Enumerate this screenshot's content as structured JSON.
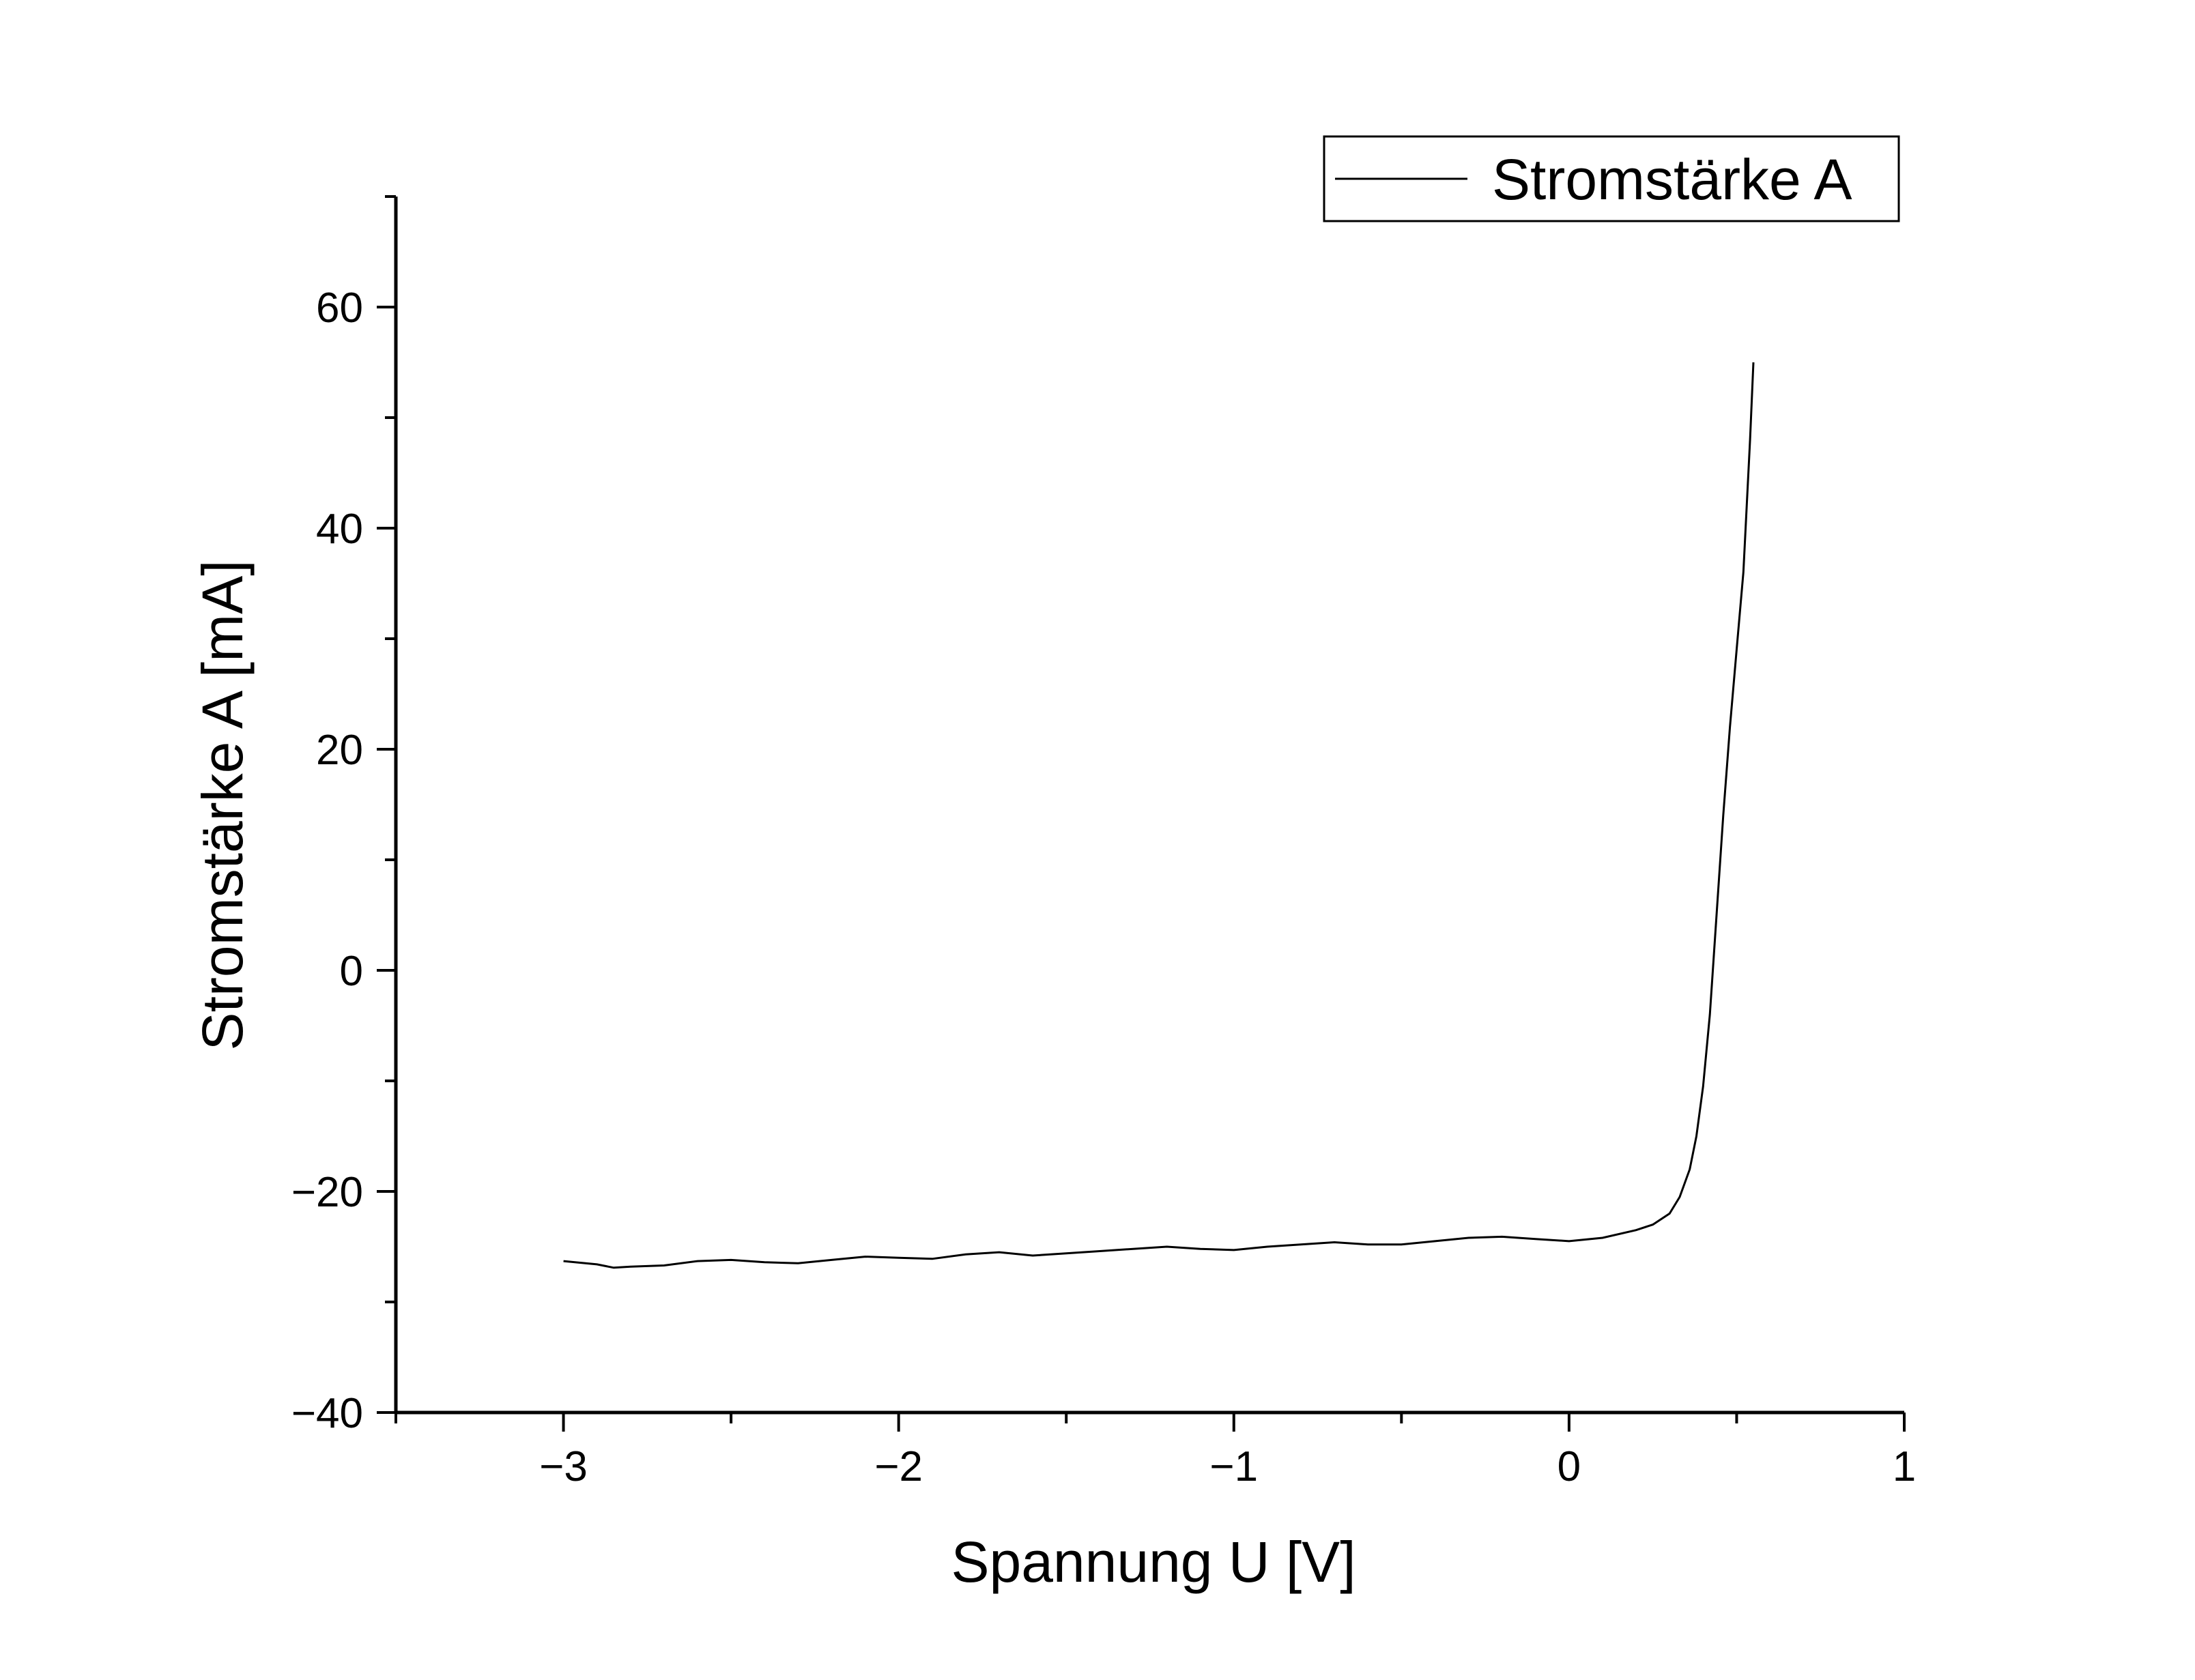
{
  "chart_data": {
    "type": "line",
    "title": "",
    "xlabel": "Spannung U [V]",
    "ylabel": "Stromstärke A [mA]",
    "xlim": [
      -3.5,
      1
    ],
    "ylim": [
      -40,
      70
    ],
    "xticks": [
      -3,
      -2,
      -1,
      0,
      1
    ],
    "xtick_labels": [
      "−3",
      "−2",
      "−1",
      "0",
      "1"
    ],
    "yticks": [
      -40,
      -20,
      0,
      20,
      40,
      60
    ],
    "ytick_labels": [
      "−40",
      "−20",
      "0",
      "20",
      "40",
      "60"
    ],
    "grid": false,
    "legend_position": "top-right",
    "line_color": "#000000",
    "series": [
      {
        "name": "Stromstärke A",
        "x": [
          -3.0,
          -2.9,
          -2.85,
          -2.8,
          -2.7,
          -2.6,
          -2.5,
          -2.4,
          -2.3,
          -2.2,
          -2.1,
          -2.0,
          -1.9,
          -1.8,
          -1.7,
          -1.6,
          -1.5,
          -1.4,
          -1.3,
          -1.2,
          -1.1,
          -1.0,
          -0.9,
          -0.8,
          -0.7,
          -0.6,
          -0.5,
          -0.4,
          -0.3,
          -0.2,
          -0.1,
          0.0,
          0.1,
          0.2,
          0.25,
          0.3,
          0.33,
          0.36,
          0.38,
          0.4,
          0.42,
          0.44,
          0.46,
          0.48,
          0.5,
          0.52,
          0.53,
          0.54,
          0.55
        ],
        "y": [
          -26.3,
          -26.6,
          -26.9,
          -26.8,
          -26.7,
          -26.3,
          -26.2,
          -26.4,
          -26.5,
          -26.2,
          -25.9,
          -26.0,
          -26.1,
          -25.7,
          -25.5,
          -25.8,
          -25.6,
          -25.4,
          -25.2,
          -25.0,
          -25.2,
          -25.3,
          -25.0,
          -24.8,
          -24.6,
          -24.8,
          -24.8,
          -24.5,
          -24.2,
          -24.1,
          -24.3,
          -24.5,
          -24.2,
          -23.5,
          -23.0,
          -22.0,
          -20.5,
          -18.0,
          -15.0,
          -10.5,
          -4.0,
          5.0,
          14.0,
          22.0,
          29.0,
          36.0,
          42.0,
          48.0,
          55.0
        ]
      }
    ]
  }
}
